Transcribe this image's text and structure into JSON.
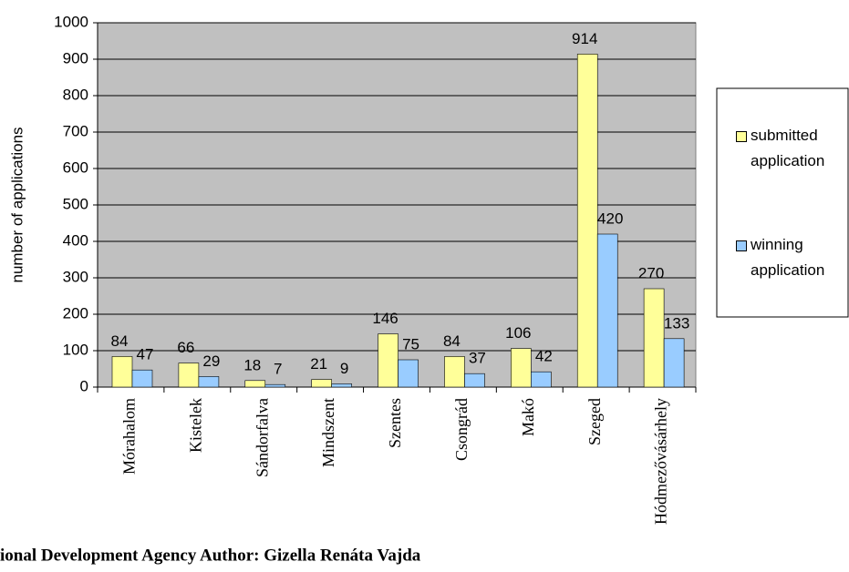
{
  "chart_data": {
    "type": "bar",
    "categories": [
      "Mórahalom",
      "Kistelek",
      "Sándorfalva",
      "Mindszent",
      "Szentes",
      "Csongrád",
      "Makó",
      "Szeged",
      "Hódmezővásárhely"
    ],
    "series": [
      {
        "name": "submitted application",
        "color": "#ffff99",
        "values": [
          84,
          66,
          18,
          21,
          146,
          84,
          106,
          914,
          270
        ]
      },
      {
        "name": "winning application",
        "color": "#99ccff",
        "values": [
          47,
          29,
          7,
          9,
          75,
          37,
          42,
          420,
          133
        ]
      }
    ],
    "ylabel": "number of applications",
    "ylim": [
      0,
      1000
    ],
    "yticks": [
      0,
      100,
      200,
      300,
      400,
      500,
      600,
      700,
      800,
      900,
      1000
    ],
    "grid": true,
    "legend": "right",
    "footer": "ional Development Agency Author: Gizella Renáta Vajda"
  }
}
